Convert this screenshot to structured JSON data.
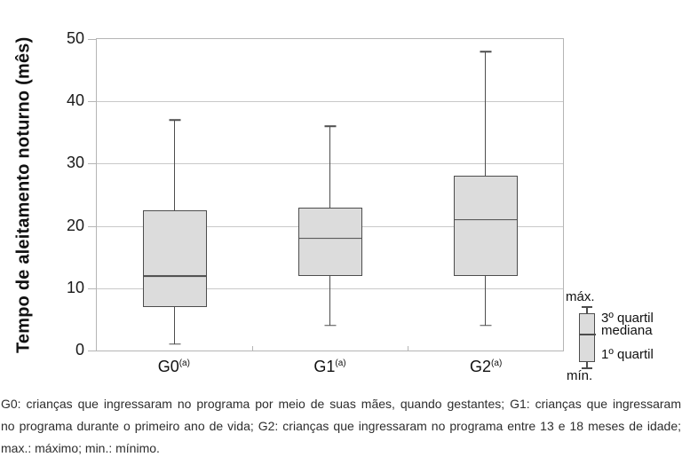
{
  "chart_data": {
    "type": "boxplot",
    "title": "",
    "xlabel": "",
    "ylabel": "Tempo de aleitamento noturno (mês)",
    "ylim": [
      0,
      50
    ],
    "yticks": [
      0,
      10,
      20,
      30,
      40,
      50
    ],
    "grid": true,
    "legend_position": "right-bottom",
    "categories": [
      {
        "label": "G0",
        "sup": "(a)"
      },
      {
        "label": "G1",
        "sup": "(a)"
      },
      {
        "label": "G2",
        "sup": "(a)"
      }
    ],
    "series": [
      {
        "group": "G0",
        "min": 1,
        "q1": 7,
        "median": 12,
        "q3": 22.5,
        "max": 37
      },
      {
        "group": "G1",
        "min": 4,
        "q1": 12,
        "median": 18,
        "q3": 23,
        "max": 36
      },
      {
        "group": "G2",
        "min": 4,
        "q1": 12,
        "median": 21,
        "q3": 28,
        "max": 48
      }
    ],
    "colors": {
      "box_fill": "#dcdcdc",
      "box_border": "#4d4d4d",
      "whisker": "#4d4d4d",
      "gridline": "#c9c9c9",
      "plot_border": "#b5b5b5",
      "text": "#111111"
    }
  },
  "legend": {
    "max_label": "máx.",
    "q3_label": "3º quartil",
    "median_label": "mediana",
    "q1_label": "1º quartil",
    "min_label": "mín."
  },
  "caption": {
    "line1": "G0: crianças que ingressaram no programa por meio de suas mães, quando gestantes; G1: crianças que ingressaram",
    "line2": "no programa durante o primeiro ano de vida; G2: crianças que ingressaram no programa entre 13 e 18 meses de idade;",
    "line3": "max.: máximo; min.: mínimo."
  }
}
